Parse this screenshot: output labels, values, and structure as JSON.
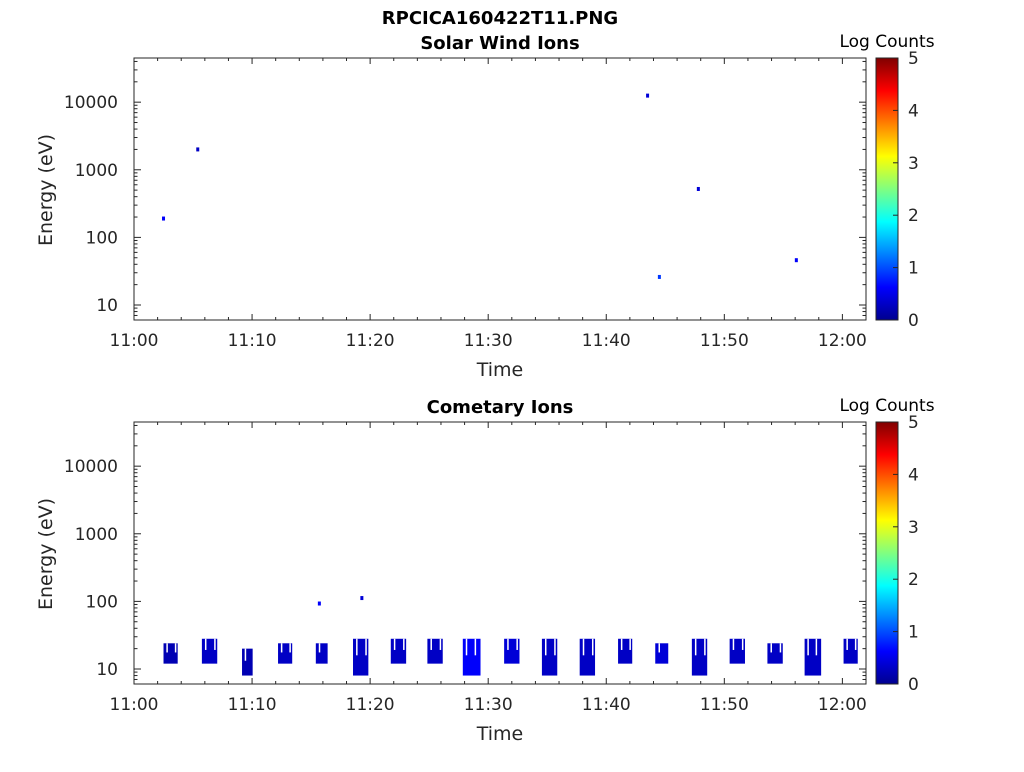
{
  "figure": {
    "title": "RPCICA160422T11.PNG"
  },
  "colorbar": {
    "title": "Log Counts",
    "ticks": [
      "0",
      "1",
      "2",
      "3",
      "4",
      "5"
    ],
    "range": [
      0,
      5
    ],
    "colormap": [
      "#00008f",
      "#0000ff",
      "#0080ff",
      "#00ffff",
      "#80ff80",
      "#ffff00",
      "#ff8000",
      "#ff0000",
      "#800000"
    ]
  },
  "chart_data": [
    {
      "type": "heatmap",
      "title": "Solar Wind Ions",
      "xlabel": "Time",
      "ylabel": "Energy (eV)",
      "y_scale": "log",
      "xlim": [
        "11:00",
        "12:02"
      ],
      "ylim": [
        6,
        45000
      ],
      "x_ticks": [
        "11:00",
        "11:10",
        "11:20",
        "11:30",
        "11:40",
        "11:50",
        "12:00"
      ],
      "y_ticks": [
        "10",
        "100",
        "1000",
        "10000"
      ],
      "cells": [
        {
          "time": "11:02.5",
          "energy": 190,
          "log_counts": 0.6
        },
        {
          "time": "11:05.4",
          "energy": 2000,
          "log_counts": 0.3
        },
        {
          "time": "11:43.5",
          "energy": 12500,
          "log_counts": 0.4
        },
        {
          "time": "11:44.5",
          "energy": 26,
          "log_counts": 0.9
        },
        {
          "time": "11:47.8",
          "energy": 520,
          "log_counts": 0.4
        },
        {
          "time": "11:56.1",
          "energy": 46,
          "log_counts": 0.6
        }
      ]
    },
    {
      "type": "heatmap",
      "title": "Cometary Ions",
      "xlabel": "Time",
      "ylabel": "Energy (eV)",
      "y_scale": "log",
      "xlim": [
        "11:00",
        "12:02"
      ],
      "ylim": [
        6,
        45000
      ],
      "x_ticks": [
        "11:00",
        "11:10",
        "11:20",
        "11:30",
        "11:40",
        "11:50",
        "12:00"
      ],
      "y_ticks": [
        "10",
        "100",
        "1000",
        "10000"
      ],
      "cells": [
        {
          "time": "11:15.7",
          "energy": 93,
          "log_counts": 0.6
        },
        {
          "time": "11:19.3",
          "energy": 112,
          "log_counts": 0.4
        }
      ],
      "bursts": [
        {
          "time": "11:03.1",
          "width_min": 1.2,
          "energy_low": 12,
          "energy_high": 24,
          "log_counts": 0.2
        },
        {
          "time": "11:06.4",
          "width_min": 1.3,
          "energy_low": 12,
          "energy_high": 28,
          "log_counts": 0.3
        },
        {
          "time": "11:09.6",
          "width_min": 0.9,
          "energy_low": 8,
          "energy_high": 20,
          "log_counts": 0.2
        },
        {
          "time": "11:12.8",
          "width_min": 1.2,
          "energy_low": 12,
          "energy_high": 24,
          "log_counts": 0.3
        },
        {
          "time": "11:15.9",
          "width_min": 1.0,
          "energy_low": 12,
          "energy_high": 24,
          "log_counts": 0.3
        },
        {
          "time": "11:19.2",
          "width_min": 1.3,
          "energy_low": 8,
          "energy_high": 28,
          "log_counts": 0.3
        },
        {
          "time": "11:22.4",
          "width_min": 1.3,
          "energy_low": 12,
          "energy_high": 28,
          "log_counts": 0.3
        },
        {
          "time": "11:25.5",
          "width_min": 1.3,
          "energy_low": 12,
          "energy_high": 28,
          "log_counts": 0.3
        },
        {
          "time": "11:28.6",
          "width_min": 1.5,
          "energy_low": 8,
          "energy_high": 28,
          "log_counts": 0.6
        },
        {
          "time": "11:32.0",
          "width_min": 1.3,
          "energy_low": 12,
          "energy_high": 28,
          "log_counts": 0.4
        },
        {
          "time": "11:35.2",
          "width_min": 1.3,
          "energy_low": 8,
          "energy_high": 28,
          "log_counts": 0.3
        },
        {
          "time": "11:38.4",
          "width_min": 1.3,
          "energy_low": 8,
          "energy_high": 28,
          "log_counts": 0.3
        },
        {
          "time": "11:41.6",
          "width_min": 1.2,
          "energy_low": 12,
          "energy_high": 28,
          "log_counts": 0.3
        },
        {
          "time": "11:44.7",
          "width_min": 1.1,
          "energy_low": 12,
          "energy_high": 24,
          "log_counts": 0.4
        },
        {
          "time": "11:47.9",
          "width_min": 1.3,
          "energy_low": 8,
          "energy_high": 28,
          "log_counts": 0.3
        },
        {
          "time": "11:51.1",
          "width_min": 1.3,
          "energy_low": 12,
          "energy_high": 28,
          "log_counts": 0.3
        },
        {
          "time": "11:54.3",
          "width_min": 1.3,
          "energy_low": 12,
          "energy_high": 24,
          "log_counts": 0.3
        },
        {
          "time": "11:57.5",
          "width_min": 1.4,
          "energy_low": 8,
          "energy_high": 28,
          "log_counts": 0.3
        },
        {
          "time": "12:00.7",
          "width_min": 1.2,
          "energy_low": 12,
          "energy_high": 28,
          "log_counts": 0.3
        }
      ]
    }
  ]
}
